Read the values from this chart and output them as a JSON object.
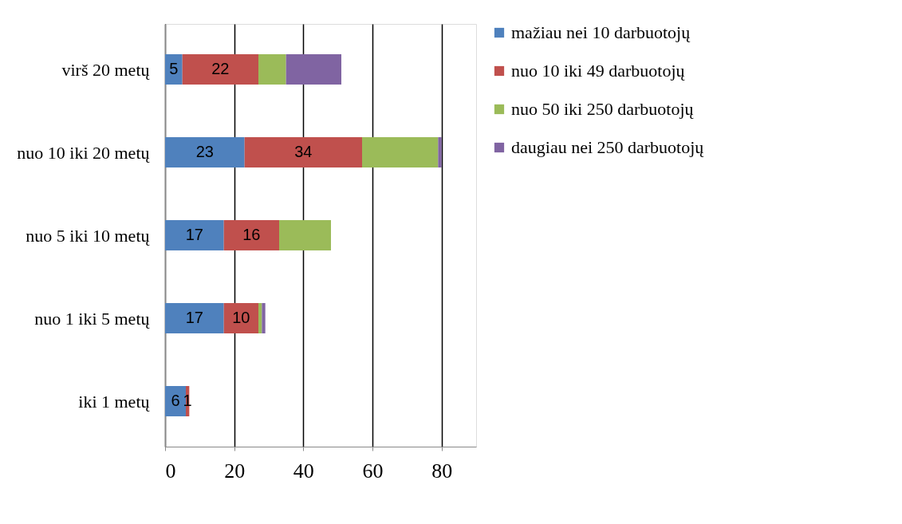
{
  "chart_data": {
    "type": "bar",
    "orientation": "horizontal",
    "stacked": true,
    "categories": [
      "virš 20 metų",
      "nuo 10 iki 20 metų",
      "nuo 5 iki 10 metų",
      "nuo 1 iki 5 metų",
      "iki 1 metų"
    ],
    "series": [
      {
        "name": "mažiau nei 10 darbuotojų",
        "color": "#4f81bd",
        "values": [
          5,
          23,
          17,
          17,
          6
        ],
        "value_labels": [
          "5",
          "23",
          "17",
          "17",
          "6"
        ]
      },
      {
        "name": "nuo 10 iki 49 darbuotojų",
        "color": "#c0504d",
        "values": [
          22,
          34,
          16,
          10,
          1
        ],
        "value_labels": [
          "22",
          "34",
          "16",
          "10",
          "1"
        ]
      },
      {
        "name": "nuo 50 iki 250 darbuotojų",
        "color": "#9bbb59",
        "values": [
          8,
          22,
          15,
          1,
          0
        ]
      },
      {
        "name": "daugiau nei 250 darbuotojų",
        "color": "#8064a2",
        "values": [
          16,
          1,
          0,
          1,
          0
        ]
      }
    ],
    "xlim": [
      0,
      90
    ],
    "xticks": [
      0,
      20,
      40,
      60,
      80
    ],
    "grid": "x",
    "legend": "right"
  }
}
